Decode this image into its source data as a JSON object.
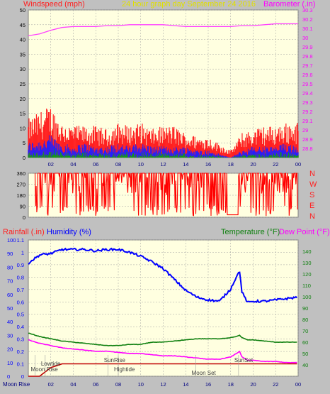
{
  "header": {
    "left_label": "Windspeed (mph)",
    "center_label": "24 hour graph day   September 24 2016",
    "right_label": "Barometer (.in)"
  },
  "direction_labels": [
    "N",
    "W",
    "S",
    "E",
    "N"
  ],
  "bottom_header": {
    "rainfall_label": "Rainfall (.in)",
    "humidity_label": "Humidity (%)",
    "temperature_label": "Temperature (°F)",
    "dewpoint_label": "Dew Point (°F)"
  },
  "colors": {
    "background": "#c0c0c0",
    "plot_bg": "#ffffe0",
    "grid": "#a0a0a0",
    "windspeed": "#ff2020",
    "wind_avg": "#2020ff",
    "wind_low": "#10a010",
    "barometer": "#ff40ff",
    "direction": "#ff0000",
    "humidity": "#0000ff",
    "temperature": "#108010",
    "dewpoint": "#ff00ff",
    "rainfall": "#c00000",
    "title": "#e0e000",
    "left_label": "#ff2020",
    "right_label": "#ff00ff"
  },
  "chart_data": [
    {
      "type": "area",
      "title": "24 hour graph day   September 24 2016",
      "ylabel": "Windspeed (mph)",
      "y2label": "Barometer (.in)",
      "x_ticks": [
        "02",
        "04",
        "06",
        "08",
        "10",
        "12",
        "14",
        "16",
        "18",
        "20",
        "22",
        "00"
      ],
      "ylim": [
        0,
        50
      ],
      "y_ticks": [
        0,
        5,
        10,
        15,
        20,
        25,
        30,
        35,
        40,
        45,
        50
      ],
      "y2lim": [
        28.7,
        30.3
      ],
      "y2_ticks": [
        "28.8",
        "28.9",
        "29",
        "29.1",
        "29.2",
        "29.3",
        "29.4",
        "29.5",
        "29.6",
        "29.7",
        "29.8",
        "29.9",
        "30",
        "30.1",
        "30.2",
        "30.3"
      ],
      "hours": [
        0,
        1,
        2,
        3,
        4,
        5,
        6,
        7,
        8,
        9,
        10,
        11,
        12,
        13,
        14,
        15,
        16,
        17,
        18,
        19,
        20,
        21,
        22,
        23,
        24
      ],
      "series": [
        {
          "name": "Windspeed (mph)",
          "values": [
            11,
            13,
            15,
            10,
            9,
            9,
            9,
            8,
            10,
            9,
            10,
            8,
            9,
            9,
            7,
            6,
            6,
            4,
            2,
            7,
            8,
            9,
            9,
            10,
            10
          ]
        },
        {
          "name": "",
          "values": [
            4,
            5,
            6,
            4,
            3,
            4,
            3,
            3,
            4,
            3,
            4,
            3,
            3,
            3,
            3,
            2,
            2,
            1,
            0,
            2,
            3,
            3,
            3,
            4,
            4
          ]
        },
        {
          "name": "Barometer (.in)",
          "values": [
            30.02,
            30.04,
            30.08,
            30.11,
            30.12,
            30.12,
            30.12,
            30.13,
            30.13,
            30.14,
            30.14,
            30.14,
            30.14,
            30.13,
            30.12,
            30.12,
            30.12,
            30.12,
            30.12,
            30.13,
            30.13,
            30.14,
            30.15,
            30.15,
            30.15
          ]
        }
      ]
    },
    {
      "type": "scatter",
      "ylabel": "Wind direction",
      "ylim": [
        0,
        360
      ],
      "y_ticks": [
        0,
        90,
        180,
        270,
        360
      ],
      "y_tick_labels": [
        "0",
        "90",
        "180",
        "270",
        "360"
      ],
      "calm_interval_hours": [
        17.7,
        18.7
      ],
      "calm_value": 20,
      "typical_range": [
        180,
        360
      ]
    },
    {
      "type": "line",
      "hours": [
        0,
        1,
        2,
        3,
        4,
        5,
        6,
        7,
        8,
        9,
        10,
        11,
        12,
        13,
        14,
        15,
        16,
        17,
        18,
        18.5,
        18.8,
        19,
        19.5,
        20,
        21,
        22,
        23,
        24
      ],
      "y_rain_lim": [
        0,
        1.1
      ],
      "y_rain_ticks": [
        "0",
        "0.1",
        "0.2",
        "0.3",
        "0.4",
        "0.5",
        "0.6",
        "0.7",
        "0.8",
        "0.9",
        "1",
        "1.1"
      ],
      "y_hum_lim": [
        0,
        100
      ],
      "y_hum_ticks": [
        "0",
        "10",
        "20",
        "30",
        "40",
        "50",
        "60",
        "70",
        "80",
        "90",
        "100"
      ],
      "y_temp_lim": [
        30,
        150
      ],
      "y_temp_ticks": [
        "40",
        "50",
        "60",
        "70",
        "80",
        "90",
        "100",
        "110",
        "120",
        "130",
        "140"
      ],
      "series": [
        {
          "name": "Humidity (%)",
          "axis": "humidity",
          "values": [
            83,
            89,
            90,
            93,
            93,
            93,
            92,
            93,
            93,
            91,
            88,
            84,
            79,
            71,
            63,
            58,
            56,
            55,
            64,
            73,
            77,
            62,
            54,
            55,
            55,
            56,
            57,
            58
          ]
        },
        {
          "name": "Temperature (°F)",
          "axis": "temp",
          "values": [
            68,
            65,
            63,
            61,
            60,
            59,
            58,
            57,
            57,
            58,
            58,
            60,
            60,
            61,
            62,
            63,
            63,
            63,
            64,
            65,
            66,
            64,
            62,
            62,
            61,
            60,
            60,
            60
          ]
        },
        {
          "name": "Dew Point (°F)",
          "axis": "temp",
          "values": [
            62,
            59,
            57,
            55,
            54,
            53,
            52,
            52,
            51,
            50,
            50,
            49,
            48,
            48,
            47,
            46,
            45,
            45,
            47,
            50,
            52,
            47,
            44,
            44,
            43,
            43,
            42,
            42
          ]
        },
        {
          "name": "Rainfall (.in)",
          "axis": "rain",
          "values": [
            0,
            0,
            0.07,
            0.1,
            0.1,
            0.1,
            0.1,
            0.1,
            0.1,
            0.1,
            0.1,
            0.1,
            0.1,
            0.1,
            0.1,
            0.1,
            0.1,
            0.1,
            0.1,
            0.1,
            0.1,
            0.1,
            0.1,
            0.1,
            0.1,
            0.1,
            0.1,
            0.1
          ]
        }
      ]
    }
  ],
  "annotations": [
    {
      "label": "Lowtide",
      "hour": 1.5,
      "level": "upper"
    },
    {
      "label": "Moon Rise",
      "hour": 0.6,
      "level": "middle"
    },
    {
      "label": "SunRise",
      "hour": 7.1,
      "level": "top"
    },
    {
      "label": "Hightide",
      "hour": 8.0,
      "level": "middle"
    },
    {
      "label": "Moon Set",
      "hour": 14.9,
      "level": "lower"
    },
    {
      "label": "SunSet",
      "hour": 18.7,
      "level": "top"
    },
    {
      "label": "Moon Rise",
      "hour": 0.8,
      "level": "bottom"
    }
  ]
}
